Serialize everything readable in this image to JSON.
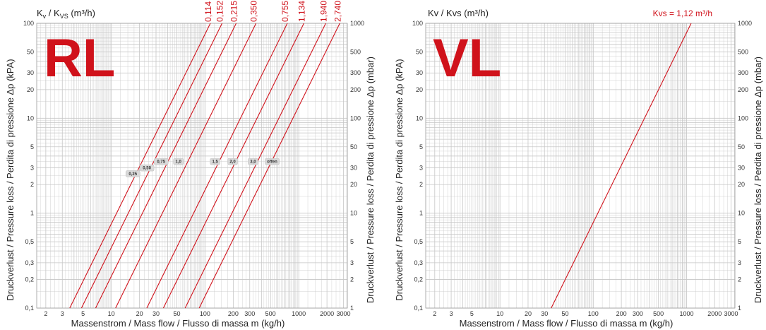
{
  "colors": {
    "accent": "#d0121b",
    "grid": "#c6c6c6",
    "text": "#222222"
  },
  "chart_data": [
    {
      "type": "line",
      "big_label": "RL",
      "title": "",
      "kv_header": {
        "main": "K",
        "sub1": "v",
        "mid": " / K",
        "sub2": "VS",
        "tail": " (m³/h)"
      },
      "xlabel": "Massenstrom / Mass flow / Flusso di massa m (kg/h)",
      "ylabel_left": "Druckverlust / Pressure loss / Perdita di pressione Δp (kPA)",
      "ylabel_right": "Druckverlust / Pressure loss / Perdita di pressione Δp (mbar)",
      "scale": "log-log",
      "grid": true,
      "xlim": [
        1.6,
        3300
      ],
      "ylim": [
        0.1,
        100
      ],
      "x_ticks": [
        "2",
        "3",
        "5",
        "10",
        "20",
        "30",
        "50",
        "100",
        "200",
        "300",
        "500",
        "1000",
        "2000",
        "3000"
      ],
      "y_ticks_left": [
        "0,1",
        "0,2",
        "0,3",
        "0,5",
        "1",
        "2",
        "3",
        "5",
        "10",
        "20",
        "30",
        "50",
        "100"
      ],
      "y_ticks_right": [
        "1",
        "2",
        "3",
        "5",
        "10",
        "20",
        "30",
        "50",
        "100",
        "200",
        "300",
        "500",
        "1000"
      ],
      "series": [
        {
          "name": "0,114",
          "kv": 0.114,
          "x": [
            3.6,
            114
          ],
          "y": [
            0.1,
            100
          ]
        },
        {
          "name": "0,152",
          "kv": 0.152,
          "x": [
            4.8,
            152
          ],
          "y": [
            0.1,
            100
          ]
        },
        {
          "name": "0,215",
          "kv": 0.215,
          "x": [
            6.8,
            215
          ],
          "y": [
            0.1,
            100
          ]
        },
        {
          "name": "0,350",
          "kv": 0.35,
          "x": [
            11.1,
            350
          ],
          "y": [
            0.1,
            100
          ]
        },
        {
          "name": "0,755",
          "kv": 0.755,
          "x": [
            23.9,
            755
          ],
          "y": [
            0.1,
            100
          ]
        },
        {
          "name": "1,134",
          "kv": 1.134,
          "x": [
            35.9,
            1134
          ],
          "y": [
            0.1,
            100
          ]
        },
        {
          "name": "1,940",
          "kv": 1.94,
          "x": [
            61.3,
            1940
          ],
          "y": [
            0.1,
            100
          ]
        },
        {
          "name": "2,740",
          "kv": 2.74,
          "x": [
            86.6,
            2740
          ],
          "y": [
            0.1,
            100
          ]
        }
      ],
      "annotations": [
        {
          "text": "0,25",
          "x": 17,
          "y": 2.6
        },
        {
          "text": "0,50",
          "x": 24,
          "y": 3.0
        },
        {
          "text": "0,75",
          "x": 34,
          "y": 3.5
        },
        {
          "text": "1,0",
          "x": 52,
          "y": 3.5
        },
        {
          "text": "1,5",
          "x": 128,
          "y": 3.5
        },
        {
          "text": "2,0",
          "x": 197,
          "y": 3.5
        },
        {
          "text": "3,0",
          "x": 325,
          "y": 3.5
        },
        {
          "text": "offen",
          "x": 520,
          "y": 3.5
        }
      ]
    },
    {
      "type": "line",
      "big_label": "VL",
      "title": "",
      "kv_header_plain": "Kv / Kvs (m³/h)",
      "kvs_label": "Kvs = 1,12 m³/h",
      "xlabel": "Massenstrom / Mass flow / Flusso di massa m (kg/h)",
      "ylabel_left": "Druckverlust / Pressure loss / Perdita di pressione Δp (kPA)",
      "ylabel_right": "Druckverlust / Pressure loss / Perdita di pressione Δp (mbar)",
      "scale": "log-log",
      "grid": true,
      "xlim": [
        1.6,
        3300
      ],
      "ylim": [
        0.1,
        100
      ],
      "x_ticks": [
        "2",
        "3",
        "5",
        "10",
        "20",
        "30",
        "50",
        "100",
        "200",
        "300",
        "500",
        "1000",
        "2000",
        "3000"
      ],
      "y_ticks_left": [
        "0,1",
        "0,2",
        "0,3",
        "0,5",
        "1",
        "2",
        "3",
        "5",
        "10",
        "20",
        "30",
        "50",
        "100"
      ],
      "y_ticks_right": [
        "1",
        "2",
        "3",
        "5",
        "10",
        "20",
        "30",
        "50",
        "100",
        "200",
        "300",
        "500",
        "1000"
      ],
      "series": [
        {
          "name": "",
          "kv": 1.12,
          "x": [
            35.4,
            1120
          ],
          "y": [
            0.1,
            100
          ]
        }
      ]
    }
  ]
}
